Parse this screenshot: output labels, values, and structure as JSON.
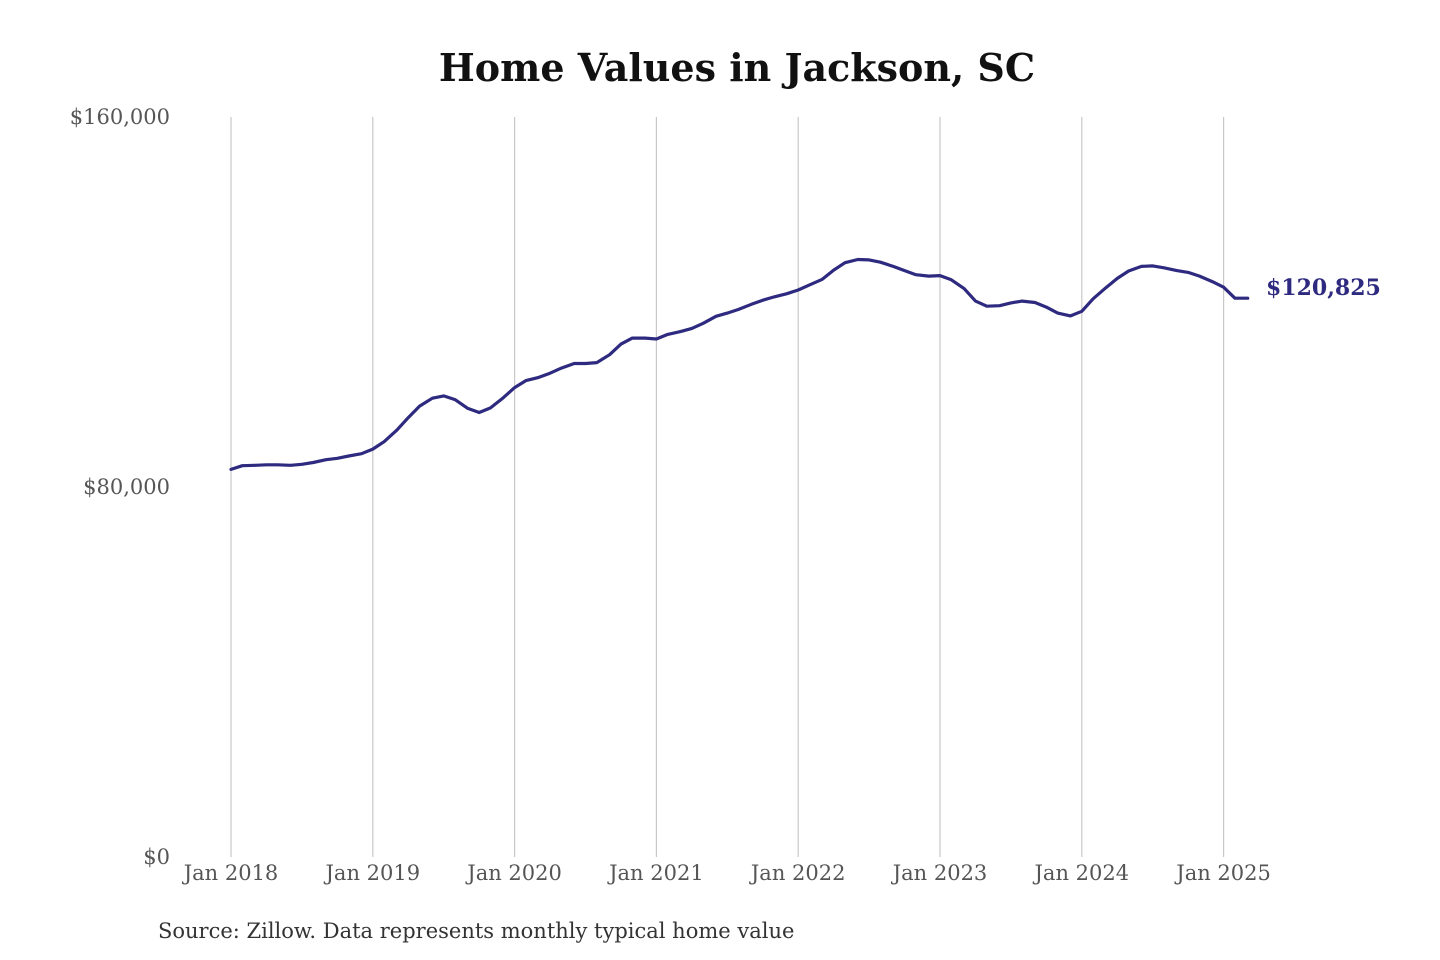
{
  "chart_data": {
    "type": "line",
    "title": "Home Values in Jackson, SC",
    "xlabel": "",
    "ylabel": "",
    "ylim": [
      0,
      160000
    ],
    "grid": "vertical gridlines at each January",
    "legend": "none",
    "y_ticks": [
      {
        "value": 0,
        "label": "$0"
      },
      {
        "value": 80000,
        "label": "$80,000"
      },
      {
        "value": 160000,
        "label": "$160,000"
      }
    ],
    "x_ticks": [
      {
        "value": 2018.0,
        "label": "Jan 2018"
      },
      {
        "value": 2019.0,
        "label": "Jan 2019"
      },
      {
        "value": 2020.0,
        "label": "Jan 2020"
      },
      {
        "value": 2021.0,
        "label": "Jan 2021"
      },
      {
        "value": 2022.0,
        "label": "Jan 2022"
      },
      {
        "value": 2023.0,
        "label": "Jan 2023"
      },
      {
        "value": 2024.0,
        "label": "Jan 2024"
      },
      {
        "value": 2025.0,
        "label": "Jan 2025"
      }
    ],
    "series": [
      {
        "color": "#2e2a7f",
        "x": [
          2018.0,
          2018.08,
          2018.17,
          2018.25,
          2018.33,
          2018.42,
          2018.5,
          2018.58,
          2018.67,
          2018.75,
          2018.83,
          2018.92,
          2019.0,
          2019.08,
          2019.17,
          2019.25,
          2019.33,
          2019.42,
          2019.5,
          2019.58,
          2019.67,
          2019.75,
          2019.83,
          2019.92,
          2020.0,
          2020.08,
          2020.17,
          2020.25,
          2020.33,
          2020.42,
          2020.5,
          2020.58,
          2020.67,
          2020.75,
          2020.83,
          2020.92,
          2021.0,
          2021.08,
          2021.17,
          2021.25,
          2021.33,
          2021.42,
          2021.5,
          2021.58,
          2021.67,
          2021.75,
          2021.83,
          2021.92,
          2022.0,
          2022.08,
          2022.17,
          2022.25,
          2022.33,
          2022.42,
          2022.5,
          2022.58,
          2022.67,
          2022.75,
          2022.83,
          2022.92,
          2023.0,
          2023.08,
          2023.17,
          2023.25,
          2023.33,
          2023.42,
          2023.5,
          2023.58,
          2023.67,
          2023.75,
          2023.83,
          2023.92,
          2024.0,
          2024.08,
          2024.17,
          2024.25,
          2024.33,
          2024.42,
          2024.5,
          2024.58,
          2024.67,
          2024.75,
          2024.83,
          2024.92,
          2025.0,
          2025.08,
          2025.17
        ],
        "values": [
          83800,
          84600,
          84700,
          84800,
          84800,
          84700,
          84900,
          85300,
          85900,
          86200,
          86700,
          87200,
          88200,
          89800,
          92300,
          95000,
          97500,
          99200,
          99700,
          98900,
          97000,
          96100,
          97100,
          99300,
          101500,
          103000,
          103700,
          104600,
          105700,
          106700,
          106700,
          106900,
          108600,
          110900,
          112200,
          112200,
          112000,
          113000,
          113600,
          114300,
          115400,
          116900,
          117600,
          118400,
          119500,
          120400,
          121100,
          121800,
          122600,
          123700,
          124900,
          126900,
          128500,
          129200,
          129100,
          128600,
          127700,
          126800,
          125900,
          125600,
          125700,
          124800,
          122900,
          120200,
          119100,
          119200,
          119800,
          120200,
          119900,
          118900,
          117600,
          117000,
          118000,
          120700,
          123100,
          125100,
          126700,
          127700,
          127800,
          127400,
          126800,
          126400,
          125600,
          124400,
          123200,
          120825,
          120825
        ]
      }
    ],
    "end_label": "$120,825",
    "source": "Source: Zillow. Data represents monthly typical home value"
  }
}
